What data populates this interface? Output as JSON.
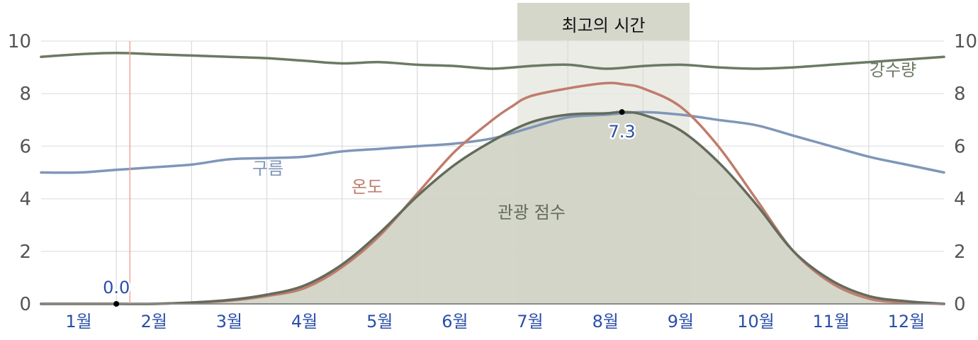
{
  "chart_data": {
    "type": "line",
    "band": {
      "title": "최고의 시간",
      "from": 6.33,
      "to": 8.62
    },
    "months": [
      "1월",
      "2월",
      "3월",
      "4월",
      "5월",
      "6월",
      "7월",
      "8월",
      "9월",
      "10월",
      "11월",
      "12월"
    ],
    "ylim": [
      0,
      10
    ],
    "yticks": [
      "0",
      "2",
      "4",
      "6",
      "8",
      "10"
    ],
    "grid": true,
    "marker": {
      "x": 1.18,
      "label": "0.0"
    },
    "peak": {
      "x": 7.72,
      "y": 7.3,
      "label": "7.3"
    },
    "series": [
      {
        "name": "강수량",
        "color": "#6b7a63",
        "area": false,
        "x": [
          0,
          0.5,
          1,
          1.5,
          2,
          2.5,
          3,
          3.5,
          4,
          4.5,
          5,
          5.5,
          6,
          6.5,
          7,
          7.5,
          8,
          8.5,
          9,
          9.5,
          10,
          10.5,
          11,
          11.5,
          12
        ],
        "y": [
          9.4,
          9.5,
          9.55,
          9.5,
          9.45,
          9.4,
          9.35,
          9.25,
          9.15,
          9.2,
          9.1,
          9.05,
          8.95,
          9.05,
          9.1,
          8.95,
          9.05,
          9.1,
          9.0,
          8.95,
          9.0,
          9.1,
          9.2,
          9.3,
          9.4
        ]
      },
      {
        "name": "구름",
        "color": "#7f96b8",
        "area": false,
        "x": [
          0,
          0.5,
          1,
          1.5,
          2,
          2.5,
          3,
          3.5,
          4,
          4.5,
          5,
          5.5,
          6,
          6.5,
          7,
          7.5,
          8,
          8.5,
          9,
          9.5,
          10,
          10.5,
          11,
          11.5,
          12
        ],
        "y": [
          5.0,
          5.0,
          5.1,
          5.2,
          5.3,
          5.5,
          5.55,
          5.6,
          5.8,
          5.9,
          6.0,
          6.1,
          6.3,
          6.7,
          7.1,
          7.2,
          7.3,
          7.2,
          7.0,
          6.8,
          6.4,
          6.0,
          5.6,
          5.3,
          5.0
        ]
      },
      {
        "name": "온도",
        "color": "#c07c6c",
        "area": false,
        "x": [
          0,
          0.5,
          1,
          1.5,
          2,
          2.5,
          3,
          3.5,
          4,
          4.5,
          5,
          5.5,
          6,
          6.25,
          6.5,
          7,
          7.5,
          7.75,
          8,
          8.5,
          9,
          9.5,
          10,
          10.5,
          11,
          11.5,
          12
        ],
        "y": [
          0,
          0,
          0,
          0,
          0.05,
          0.12,
          0.3,
          0.6,
          1.4,
          2.6,
          4.2,
          5.8,
          7.0,
          7.5,
          7.9,
          8.2,
          8.4,
          8.35,
          8.2,
          7.5,
          6.0,
          4.0,
          2.0,
          0.8,
          0.2,
          0.05,
          0
        ]
      },
      {
        "name": "관광 점수",
        "color": "#636b5c",
        "area": true,
        "fill": "#d1d4c6",
        "x": [
          0,
          0.5,
          1,
          1.5,
          2,
          2.5,
          3,
          3.5,
          4,
          4.5,
          5,
          5.5,
          6,
          6.5,
          7,
          7.5,
          7.72,
          8,
          8.5,
          9,
          9.5,
          10,
          10.5,
          11,
          11.5,
          12
        ],
        "y": [
          0,
          0,
          0,
          0,
          0.05,
          0.15,
          0.35,
          0.7,
          1.5,
          2.7,
          4.1,
          5.3,
          6.2,
          6.9,
          7.2,
          7.25,
          7.3,
          7.2,
          6.6,
          5.4,
          3.8,
          2.0,
          0.9,
          0.3,
          0.1,
          0
        ]
      }
    ],
    "labels": {
      "rain": "강수량",
      "cloud": "구름",
      "temp": "온도",
      "score": "관광 점수"
    }
  }
}
